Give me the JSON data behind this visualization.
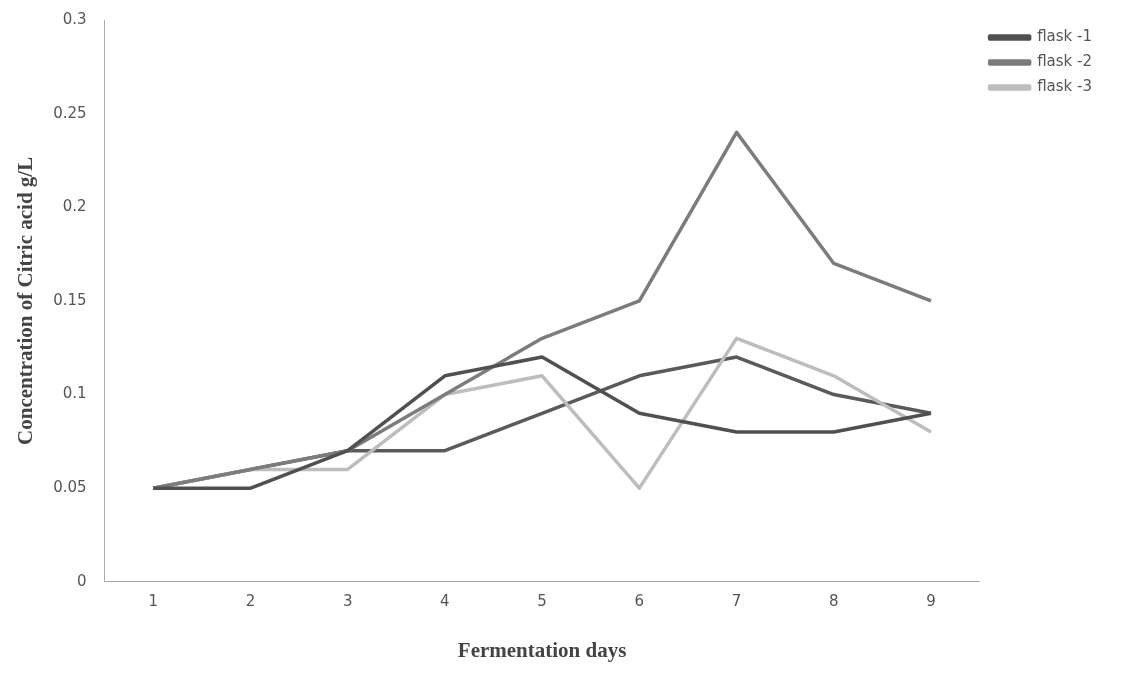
{
  "chart_data": {
    "type": "line",
    "xlabel": "Fermentation days",
    "ylabel": "Concentration of Citric acid g/L",
    "categories": [
      "1",
      "2",
      "3",
      "4",
      "5",
      "6",
      "7",
      "8",
      "9"
    ],
    "series": [
      {
        "name": "flask -1",
        "color": "#505050",
        "values": [
          0.05,
          0.05,
          0.07,
          0.11,
          0.12,
          0.09,
          0.08,
          0.08,
          0.09
        ]
      },
      {
        "name": "flask -2",
        "color": "#7c7c7c",
        "values": [
          0.05,
          0.06,
          0.07,
          0.1,
          0.13,
          0.15,
          0.24,
          0.17,
          0.15
        ]
      },
      {
        "name": "flask -3",
        "color": "#bdbdbd",
        "values": [
          0.05,
          0.06,
          0.06,
          0.1,
          0.11,
          0.05,
          0.13,
          0.11,
          0.08
        ]
      },
      {
        "color": "#5a5a5a",
        "values": [
          0.05,
          0.06,
          0.07,
          0.07,
          0.09,
          0.11,
          0.12,
          0.1,
          0.09
        ]
      }
    ],
    "ylim": [
      0,
      0.3
    ],
    "yticks": [
      0,
      0.05,
      0.1,
      0.15,
      0.2,
      0.25,
      0.3
    ],
    "grid": false,
    "legend": "top right",
    "marker": "none",
    "line_style": "solid"
  }
}
